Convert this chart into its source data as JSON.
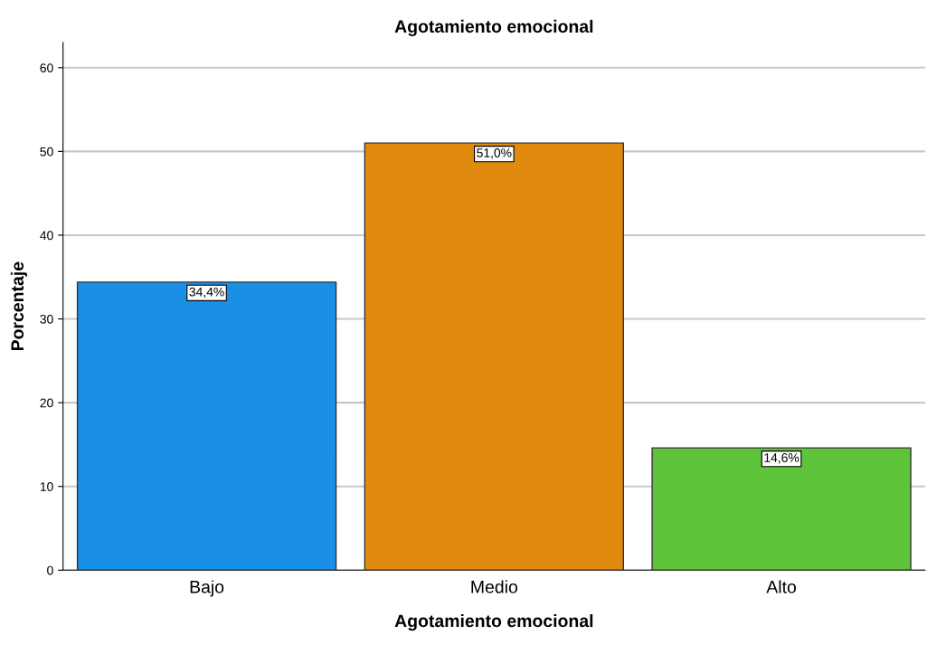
{
  "chart_data": {
    "type": "bar",
    "title": "Agotamiento emocional",
    "xlabel": "Agotamiento emocional",
    "ylabel": "Porcentaje",
    "categories": [
      "Bajo",
      "Medio",
      "Alto"
    ],
    "values": [
      34.4,
      51.0,
      14.6
    ],
    "value_labels": [
      "34,4%",
      "51,0%",
      "14,6%"
    ],
    "colors": [
      "#1990e6",
      "#e08a10",
      "#5ec43a"
    ],
    "ylim": [
      0,
      63
    ],
    "yticks": [
      0,
      10,
      20,
      30,
      40,
      50,
      60
    ],
    "grid": "y"
  }
}
